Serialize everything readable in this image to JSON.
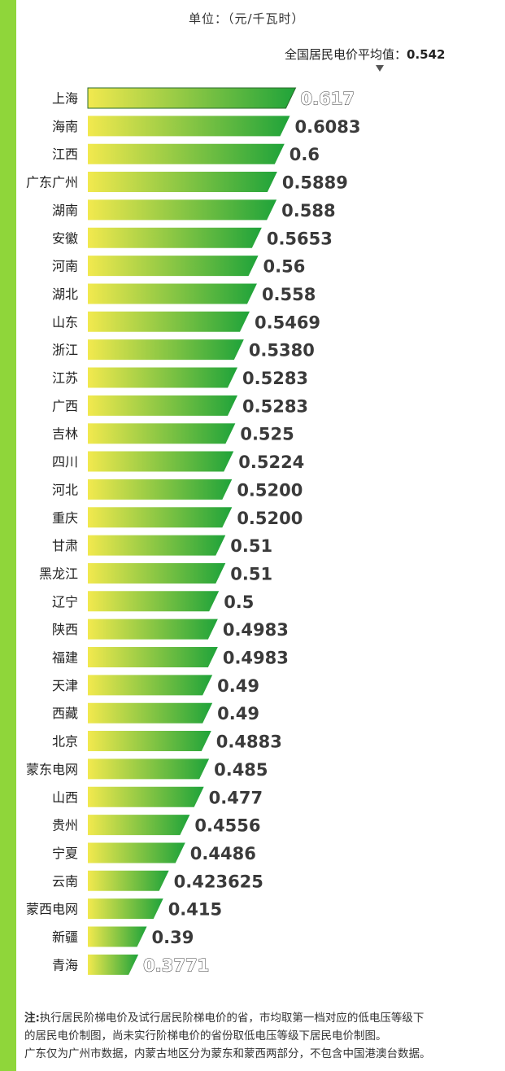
{
  "unit_label": "单位：（元/千瓦时）",
  "average": {
    "label": "全国居民电价平均值：",
    "value": "0.542"
  },
  "note": {
    "prefix": "注:",
    "line1": "执行居民阶梯电价及试行居民阶梯电价的省，市均取第一档对应的低电压等级下",
    "line2": "的居民电价制图，尚未实行阶梯电价的省份取低电压等级下居民电价制图。",
    "line3": "广东仅为广州市数据，内蒙古地区分为蒙东和蒙西两部分，不包含中国港澳台数据。"
  },
  "colors": {
    "bar_start": "#f2e94e",
    "bar_end": "#1fa33a",
    "stripe": "#8fd63a"
  },
  "chart_data": {
    "type": "bar",
    "orientation": "horizontal",
    "categories": [
      "上海",
      "海南",
      "江西",
      "广东广州",
      "湖南",
      "安徽",
      "河南",
      "湖北",
      "山东",
      "浙江",
      "江苏",
      "广西",
      "吉林",
      "四川",
      "河北",
      "重庆",
      "甘肃",
      "黑龙江",
      "辽宁",
      "陕西",
      "福建",
      "天津",
      "西藏",
      "北京",
      "蒙东电网",
      "山西",
      "贵州",
      "宁夏",
      "云南",
      "蒙西电网",
      "新疆",
      "青海"
    ],
    "values": [
      0.617,
      0.6083,
      0.6,
      0.5889,
      0.588,
      0.5653,
      0.56,
      0.558,
      0.5469,
      0.538,
      0.5283,
      0.5283,
      0.525,
      0.5224,
      0.52,
      0.52,
      0.51,
      0.51,
      0.5,
      0.4983,
      0.4983,
      0.49,
      0.49,
      0.4883,
      0.485,
      0.477,
      0.4556,
      0.4486,
      0.423625,
      0.415,
      0.39,
      0.3771
    ],
    "value_labels": [
      "0.617",
      "0.6083",
      "0.6",
      "0.5889",
      "0.588",
      "0.5653",
      "0.56",
      "0.558",
      "0.5469",
      "0.5380",
      "0.5283",
      "0.5283",
      "0.525",
      "0.5224",
      "0.5200",
      "0.5200",
      "0.51",
      "0.51",
      "0.5",
      "0.4983",
      "0.4983",
      "0.49",
      "0.49",
      "0.4883",
      "0.485",
      "0.477",
      "0.4556",
      "0.4486",
      "0.423625",
      "0.415",
      "0.39",
      "0.3771"
    ],
    "title": "",
    "xlabel": "",
    "ylabel": "",
    "grid": false,
    "average_line": 0.542
  }
}
